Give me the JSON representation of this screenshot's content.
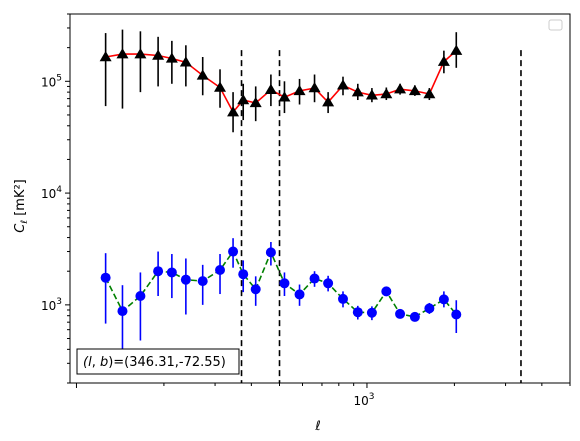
{
  "chart_data": {
    "type": "line",
    "title": "",
    "xlabel": "ℓ",
    "ylabel_main": "C",
    "ylabel_sub": "ℓ",
    "ylabel_unit": "[mK²]",
    "xscale": "log",
    "yscale": "log",
    "xlim": [
      95,
      5000
    ],
    "ylim": [
      200,
      400000
    ],
    "x_tick_labels": [
      {
        "value": 1000,
        "base": "10",
        "exp": "3"
      }
    ],
    "y_tick_labels": [
      {
        "value": 1000,
        "base": "10",
        "exp": "3"
      },
      {
        "value": 10000,
        "base": "10",
        "exp": "4"
      },
      {
        "value": 100000,
        "base": "10",
        "exp": "5"
      }
    ],
    "vlines": [
      370,
      500,
      3390
    ],
    "annotation": "(l, b)=(346.31,-72.55)",
    "legend": "top-right (empty)",
    "series": [
      {
        "marker": "triangle",
        "marker_color": "#000000",
        "line_color": "#ff0000",
        "line_style": "solid",
        "error_color": "#000000",
        "points": [
          {
            "x": 126,
            "y": 165000,
            "lo": 60000,
            "hi": 270000
          },
          {
            "x": 144,
            "y": 175000,
            "lo": 57000,
            "hi": 290000
          },
          {
            "x": 166,
            "y": 175000,
            "lo": 80000,
            "hi": 280000
          },
          {
            "x": 191,
            "y": 170000,
            "lo": 90000,
            "hi": 250000
          },
          {
            "x": 213,
            "y": 160000,
            "lo": 95000,
            "hi": 230000
          },
          {
            "x": 238,
            "y": 148000,
            "lo": 90000,
            "hi": 210000
          },
          {
            "x": 272,
            "y": 113000,
            "lo": 75000,
            "hi": 165000
          },
          {
            "x": 312,
            "y": 88000,
            "lo": 58000,
            "hi": 128000
          },
          {
            "x": 346,
            "y": 53000,
            "lo": 35000,
            "hi": 80000
          },
          {
            "x": 375,
            "y": 68000,
            "lo": 45000,
            "hi": 95000
          },
          {
            "x": 414,
            "y": 64000,
            "lo": 44000,
            "hi": 90000
          },
          {
            "x": 467,
            "y": 84000,
            "lo": 60000,
            "hi": 115000
          },
          {
            "x": 520,
            "y": 72000,
            "lo": 52000,
            "hi": 100000
          },
          {
            "x": 586,
            "y": 82000,
            "lo": 62000,
            "hi": 105000
          },
          {
            "x": 660,
            "y": 87000,
            "lo": 65000,
            "hi": 115000
          },
          {
            "x": 735,
            "y": 65000,
            "lo": 52000,
            "hi": 80000
          },
          {
            "x": 827,
            "y": 92000,
            "lo": 75000,
            "hi": 110000
          },
          {
            "x": 930,
            "y": 80000,
            "lo": 68000,
            "hi": 95000
          },
          {
            "x": 1040,
            "y": 75000,
            "lo": 65000,
            "hi": 87000
          },
          {
            "x": 1166,
            "y": 77000,
            "lo": 68000,
            "hi": 88000
          },
          {
            "x": 1300,
            "y": 85000,
            "lo": 76000,
            "hi": 95000
          },
          {
            "x": 1462,
            "y": 82000,
            "lo": 74000,
            "hi": 92000
          },
          {
            "x": 1640,
            "y": 77000,
            "lo": 68000,
            "hi": 87000
          },
          {
            "x": 1840,
            "y": 150000,
            "lo": 118000,
            "hi": 188000
          },
          {
            "x": 2030,
            "y": 188000,
            "lo": 132000,
            "hi": 275000
          }
        ]
      },
      {
        "marker": "circle",
        "marker_color": "#0000ff",
        "line_color": "#008000",
        "line_style": "dashed",
        "error_color": "#0000ff",
        "points": [
          {
            "x": 126,
            "y": 1750,
            "lo": 680,
            "hi": 2900
          },
          {
            "x": 144,
            "y": 880,
            "lo": 280,
            "hi": 1500
          },
          {
            "x": 166,
            "y": 1200,
            "lo": 480,
            "hi": 1950
          },
          {
            "x": 191,
            "y": 2000,
            "lo": 1200,
            "hi": 3000
          },
          {
            "x": 213,
            "y": 1950,
            "lo": 1150,
            "hi": 2850
          },
          {
            "x": 238,
            "y": 1680,
            "lo": 820,
            "hi": 2600
          },
          {
            "x": 272,
            "y": 1630,
            "lo": 1000,
            "hi": 2280
          },
          {
            "x": 312,
            "y": 2050,
            "lo": 1250,
            "hi": 2850
          },
          {
            "x": 346,
            "y": 3000,
            "lo": 2150,
            "hi": 3950
          },
          {
            "x": 375,
            "y": 1880,
            "lo": 1300,
            "hi": 2500
          },
          {
            "x": 414,
            "y": 1380,
            "lo": 980,
            "hi": 1800
          },
          {
            "x": 467,
            "y": 2950,
            "lo": 2250,
            "hi": 3650
          },
          {
            "x": 520,
            "y": 1560,
            "lo": 1200,
            "hi": 1950
          },
          {
            "x": 586,
            "y": 1240,
            "lo": 980,
            "hi": 1520
          },
          {
            "x": 660,
            "y": 1720,
            "lo": 1450,
            "hi": 2000
          },
          {
            "x": 735,
            "y": 1560,
            "lo": 1320,
            "hi": 1820
          },
          {
            "x": 827,
            "y": 1130,
            "lo": 950,
            "hi": 1320
          },
          {
            "x": 930,
            "y": 860,
            "lo": 740,
            "hi": 980
          },
          {
            "x": 1040,
            "y": 850,
            "lo": 730,
            "hi": 970
          },
          {
            "x": 1166,
            "y": 1320,
            "lo": 1200,
            "hi": 1450
          },
          {
            "x": 1300,
            "y": 830,
            "lo": 760,
            "hi": 900
          },
          {
            "x": 1462,
            "y": 780,
            "lo": 710,
            "hi": 850
          },
          {
            "x": 1640,
            "y": 930,
            "lo": 830,
            "hi": 1040
          },
          {
            "x": 1840,
            "y": 1120,
            "lo": 950,
            "hi": 1320
          },
          {
            "x": 2030,
            "y": 820,
            "lo": 560,
            "hi": 1100
          }
        ]
      }
    ]
  }
}
